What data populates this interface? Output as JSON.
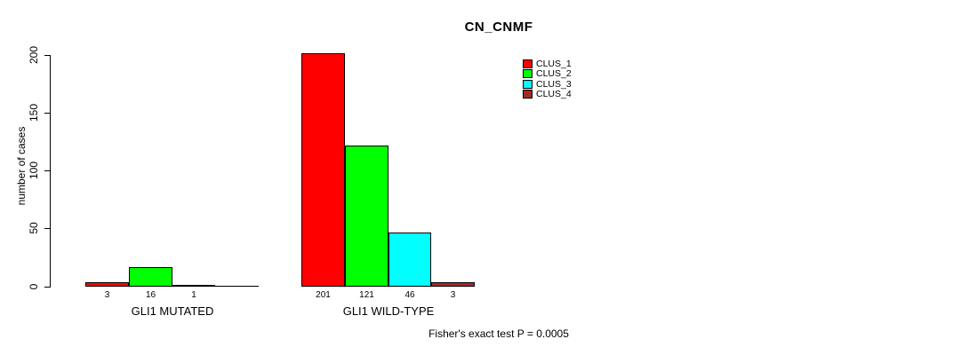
{
  "chart_data": {
    "type": "bar",
    "title": "CN_CNMF",
    "ylabel": "number of cases",
    "xlabel": "",
    "ylim": [
      0,
      200
    ],
    "yticks": [
      0,
      50,
      100,
      150,
      200
    ],
    "grid": false,
    "legend_position": "top-right",
    "categories": [
      "GLI1 MUTATED",
      "GLI1 WILD-TYPE"
    ],
    "series": [
      {
        "name": "CLUS_1",
        "color": "#ff0000",
        "values": [
          3,
          201
        ]
      },
      {
        "name": "CLUS_2",
        "color": "#00ff00",
        "values": [
          16,
          121
        ]
      },
      {
        "name": "CLUS_3",
        "color": "#00ffff",
        "values": [
          1,
          46
        ]
      },
      {
        "name": "CLUS_4",
        "color": "#a52a2a",
        "values": [
          0,
          3
        ]
      }
    ],
    "bar_value_labels": [
      [
        "3",
        "16",
        "1",
        ""
      ],
      [
        "201",
        "121",
        "46",
        "3"
      ]
    ],
    "footer": "Fisher's exact test P = 0.0005"
  }
}
